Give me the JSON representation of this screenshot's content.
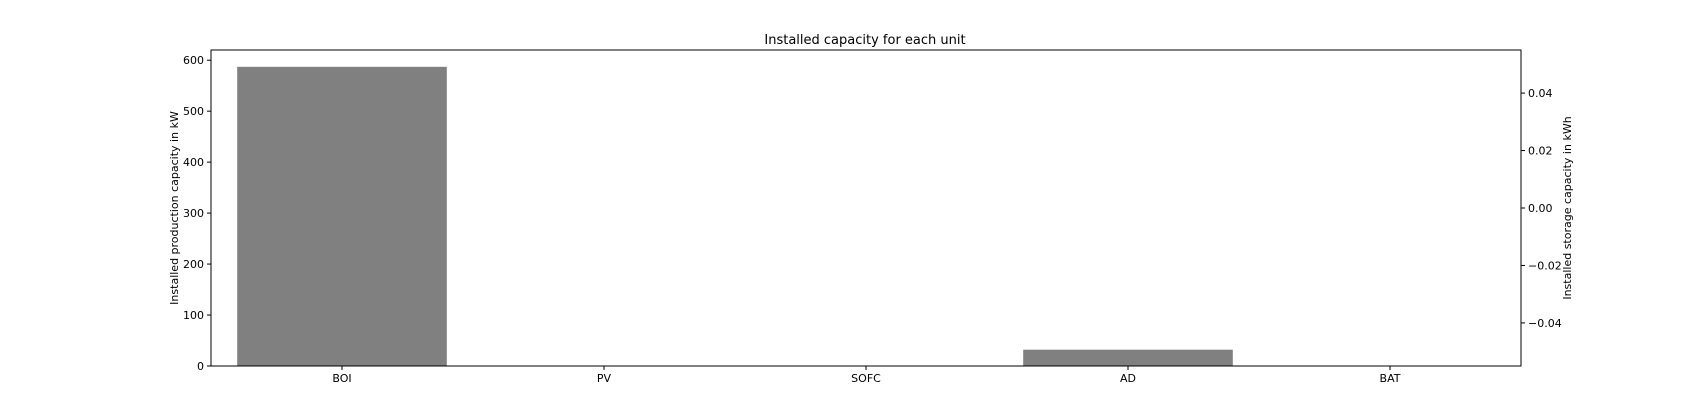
{
  "chart_data": {
    "type": "bar",
    "title": "Installed capacity for each unit",
    "categories": [
      "BOI",
      "PV",
      "SOFC",
      "AD",
      "BAT"
    ],
    "series": [
      {
        "axis": "left",
        "values": [
          587,
          0,
          0,
          32,
          0
        ],
        "color": "#808080"
      },
      {
        "axis": "right",
        "values": [
          0,
          0,
          0,
          0,
          0
        ],
        "color": "#808080"
      }
    ],
    "ylabel": "Installed production capacity in kW",
    "ylim": [
      0,
      620
    ],
    "yticks": [
      0,
      100,
      200,
      300,
      400,
      500,
      600
    ],
    "ytick_labels": [
      "0",
      "100",
      "200",
      "300",
      "400",
      "500",
      "600"
    ],
    "y2label": "Installed storage capacity in kWh",
    "y2lim": [
      -0.055,
      0.055
    ],
    "y2ticks": [
      -0.04,
      -0.02,
      0.0,
      0.02,
      0.04
    ],
    "y2tick_labels": [
      "−0.04",
      "−0.02",
      "0.00",
      "0.02",
      "0.04"
    ],
    "grid": false,
    "legend": "none"
  }
}
